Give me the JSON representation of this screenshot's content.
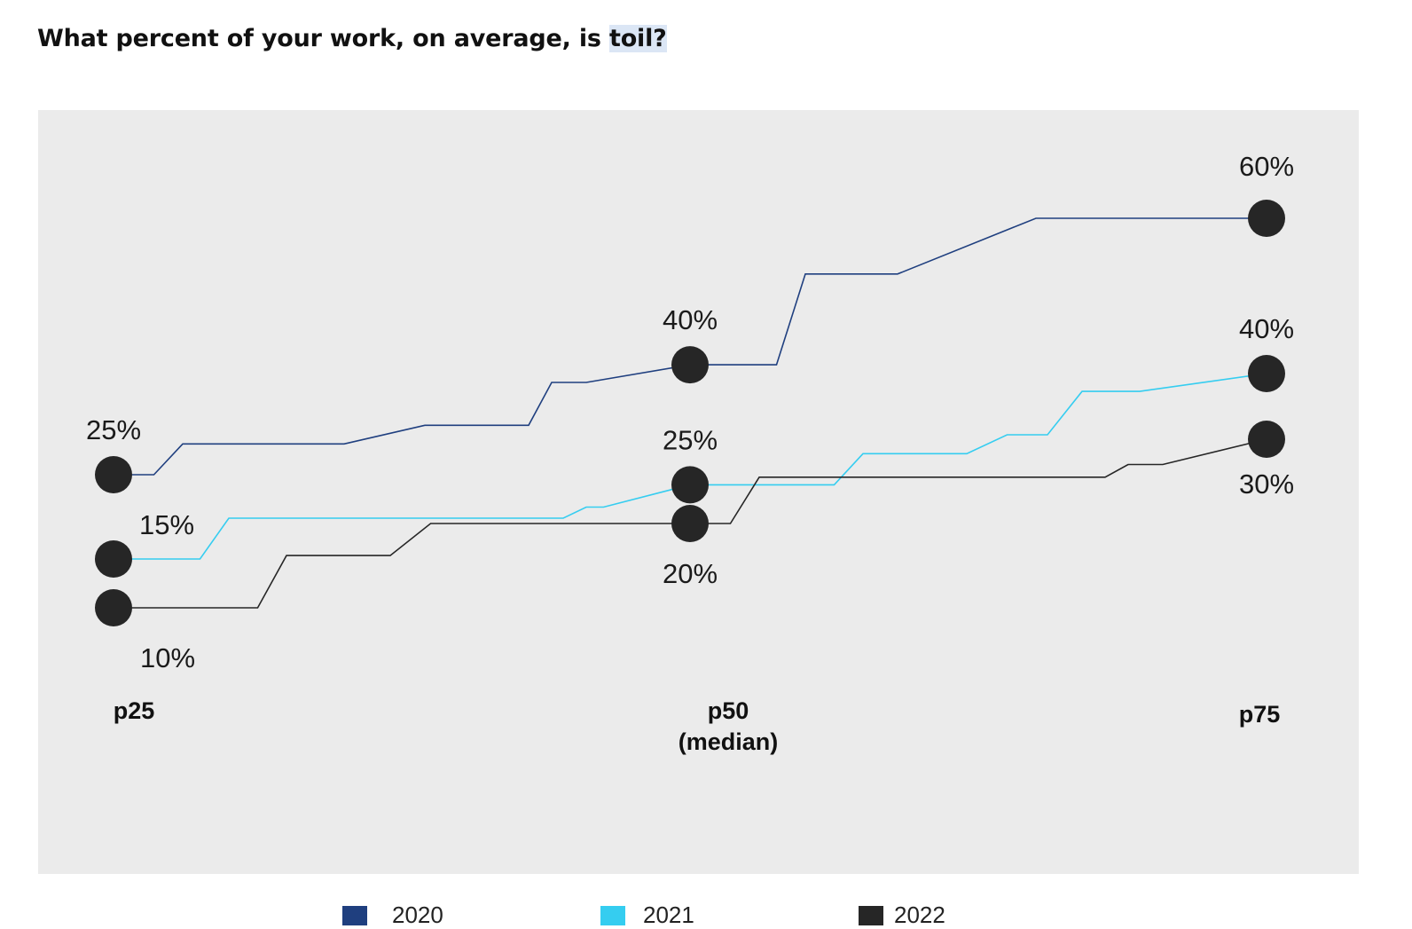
{
  "page": {
    "title_prefix": "What percent of your work, on average, is ",
    "title_highlight": "toil?"
  },
  "chart_data": {
    "type": "line",
    "categories": [
      "p25",
      "p50\n(median)",
      "p75"
    ],
    "series": [
      {
        "name": "2020",
        "color": "#1f3f7f",
        "values": [
          25,
          40,
          60
        ],
        "value_labels": [
          "25%",
          "40%",
          "60%"
        ]
      },
      {
        "name": "2021",
        "color": "#35cdf0",
        "values": [
          15,
          25,
          40
        ],
        "value_labels": [
          "15%",
          "25%",
          "40%"
        ]
      },
      {
        "name": "2022",
        "color": "#262626",
        "values": [
          10,
          20,
          30
        ],
        "value_labels": [
          "10%",
          "20%",
          "30%"
        ]
      }
    ],
    "marker_color": "#262626",
    "background": "#ebebeb",
    "grid": false,
    "legend_position": "bottom"
  }
}
